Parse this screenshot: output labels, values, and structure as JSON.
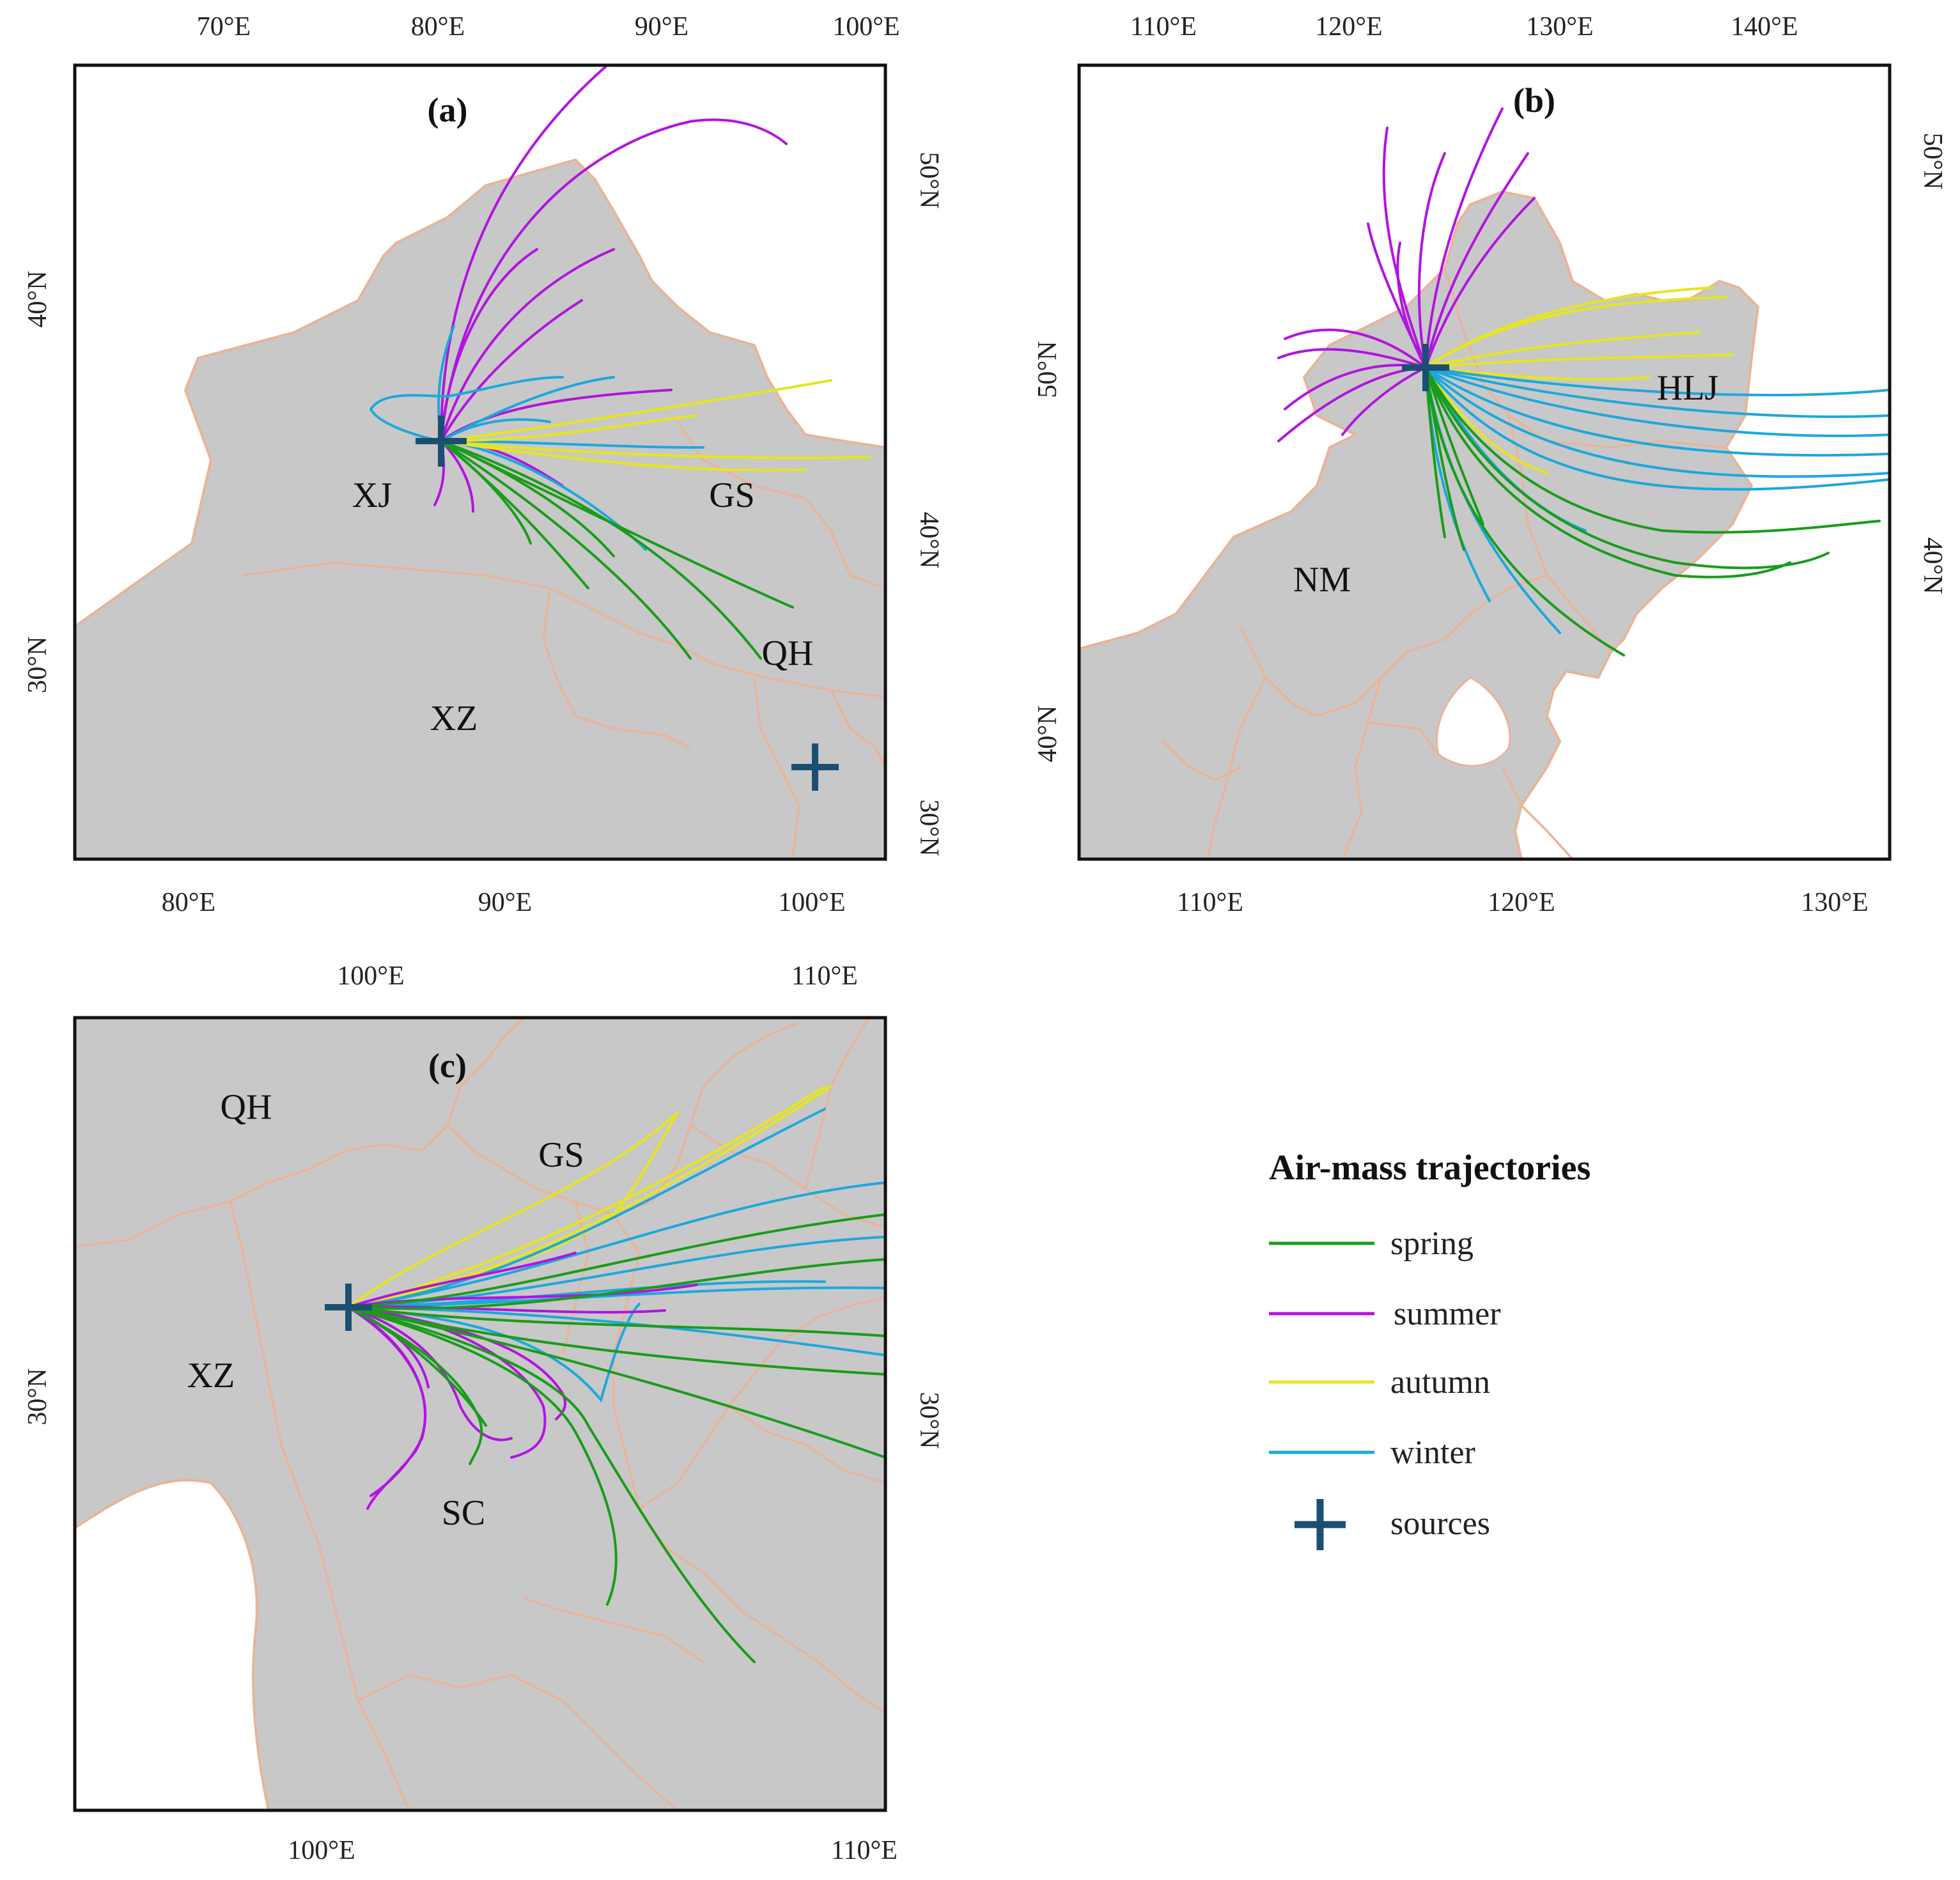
{
  "colors": {
    "spring": "#1a9c1a",
    "summer": "#b214e0",
    "autumn": "#e6e61e",
    "winter": "#1ca8dc",
    "source": "#1b4f72",
    "land": "#c8c8c8",
    "boundary": "#e8b49a"
  },
  "panel_a": {
    "label": "(a)",
    "top_ticks": [
      "70°E",
      "80°E",
      "90°E",
      "100°E"
    ],
    "bottom_ticks": [
      "80°E",
      "90°E",
      "100°E"
    ],
    "left_ticks": [
      "40°N",
      "30°N"
    ],
    "right_ticks": [
      "50°N",
      "40°N",
      "30°N"
    ],
    "regions": [
      "XJ",
      "GS",
      "QH",
      "XZ"
    ]
  },
  "panel_b": {
    "label": "(b)",
    "top_ticks": [
      "110°E",
      "120°E",
      "130°E",
      "140°E"
    ],
    "bottom_ticks": [
      "110°E",
      "120°E",
      "130°E"
    ],
    "left_ticks": [
      "50°N",
      "40°N"
    ],
    "right_ticks": [
      "50°N",
      "40°N"
    ],
    "regions": [
      "HLJ",
      "NM"
    ]
  },
  "panel_c": {
    "label": "(c)",
    "top_ticks": [
      "100°E",
      "110°E"
    ],
    "bottom_ticks": [
      "100°E",
      "110°E"
    ],
    "left_ticks": [
      "30°N"
    ],
    "right_ticks": [
      "30°N"
    ],
    "regions": [
      "QH",
      "GS",
      "XZ",
      "SC"
    ]
  },
  "legend": {
    "title": "Air-mass trajectories",
    "items": [
      {
        "label": "spring",
        "type": "line",
        "color": "#1a9c1a"
      },
      {
        "label": "summer",
        "type": "line",
        "color": "#b214e0"
      },
      {
        "label": "autumn",
        "type": "line",
        "color": "#e6e61e"
      },
      {
        "label": "winter",
        "type": "line",
        "color": "#1ca8dc"
      },
      {
        "label": "sources",
        "type": "cross",
        "color": "#1b4f72"
      }
    ]
  }
}
